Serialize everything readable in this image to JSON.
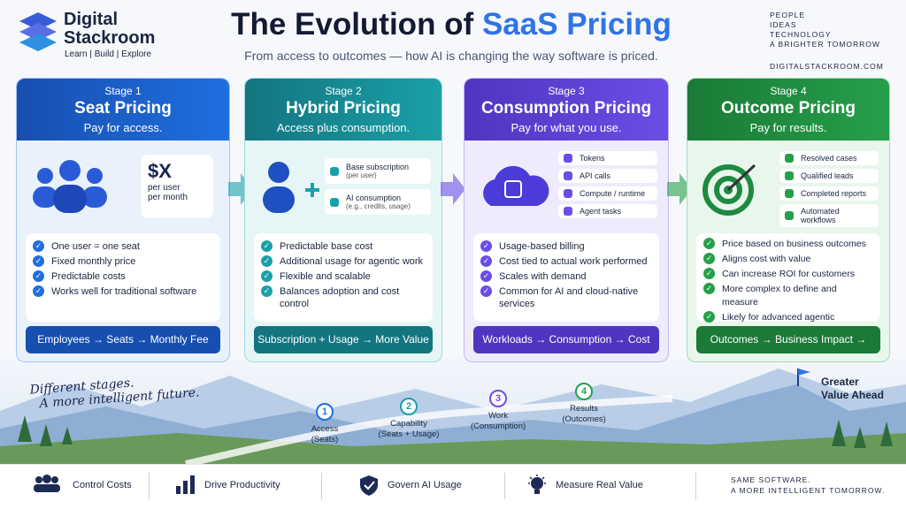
{
  "header": {
    "brand": {
      "name_lines": [
        "Digital",
        "Stackroom"
      ],
      "tagline": "Learn | Build | Explore"
    },
    "title": {
      "prefix": "The Evolution of",
      "highlight": "SaaS Pricing"
    },
    "subtitle": "From access to outcomes — how AI is changing the way software is priced.",
    "motto": [
      "PEOPLE",
      "IDEAS",
      "TECHNOLOGY",
      "A BRIGHTER TOMORROW"
    ],
    "website": "DIGITALSTACKROOM.COM"
  },
  "stages": [
    {
      "label": "Stage 1",
      "title": "Seat Pricing",
      "subtitle": "Pay for access.",
      "visual": {
        "price": "$X",
        "unit": [
          "per user",
          "per month"
        ]
      },
      "bullets": [
        "One user = one seat",
        "Fixed monthly price",
        "Predictable costs",
        "Works well for traditional software"
      ],
      "footer": "Employees → Seats → Monthly Fee"
    },
    {
      "label": "Stage 2",
      "title": "Hybrid Pricing",
      "subtitle": "Access plus consumption.",
      "visual": {
        "items": [
          {
            "label": "Base subscription",
            "note": "(per user)"
          },
          {
            "label": "AI consumption",
            "note": "(e.g., credits, usage)"
          }
        ]
      },
      "bullets": [
        "Predictable base cost",
        "Additional usage for agentic work",
        "Flexible and scalable",
        "Balances adoption and cost control"
      ],
      "footer": "Subscription + Usage → More Value"
    },
    {
      "label": "Stage 3",
      "title": "Consumption Pricing",
      "subtitle": "Pay for what you use.",
      "visual": {
        "items": [
          "Tokens",
          "API calls",
          "Compute / runtime",
          "Agent tasks"
        ]
      },
      "bullets": [
        "Usage-based billing",
        "Cost tied to actual work performed",
        "Scales with demand",
        "Common for AI and cloud-native services"
      ],
      "footer": "Workloads → Consumption → Cost"
    },
    {
      "label": "Stage 4",
      "title": "Outcome Pricing",
      "subtitle": "Pay for results.",
      "visual": {
        "items": [
          "Resolved cases",
          "Qualified leads",
          "Completed reports",
          "Automated workflows"
        ]
      },
      "bullets": [
        "Price based on business outcomes",
        "Aligns cost with value",
        "Can increase ROI for customers",
        "More complex to define and measure",
        "Likely for advanced agentic solutions"
      ],
      "footer": "Outcomes → Business Impact → Growth"
    }
  ],
  "journey": {
    "slogan": [
      "Different stages.",
      "A more intelligent future."
    ],
    "steps": [
      {
        "number": 1,
        "label": [
          "Access",
          "(Seats)"
        ]
      },
      {
        "number": 2,
        "label": [
          "Capability",
          "(Seats + Usage)"
        ]
      },
      {
        "number": 3,
        "label": [
          "Work",
          "(Consumption)"
        ]
      },
      {
        "number": 4,
        "label": [
          "Results",
          "(Outcomes)"
        ]
      }
    ],
    "goal": [
      "Greater",
      "Value Ahead"
    ]
  },
  "footer": {
    "items": [
      "Control Costs",
      "Drive Productivity",
      "Govern AI Usage",
      "Measure Real Value"
    ],
    "closing": [
      "SAME SOFTWARE.",
      "A MORE INTELLIGENT TOMORROW."
    ]
  }
}
